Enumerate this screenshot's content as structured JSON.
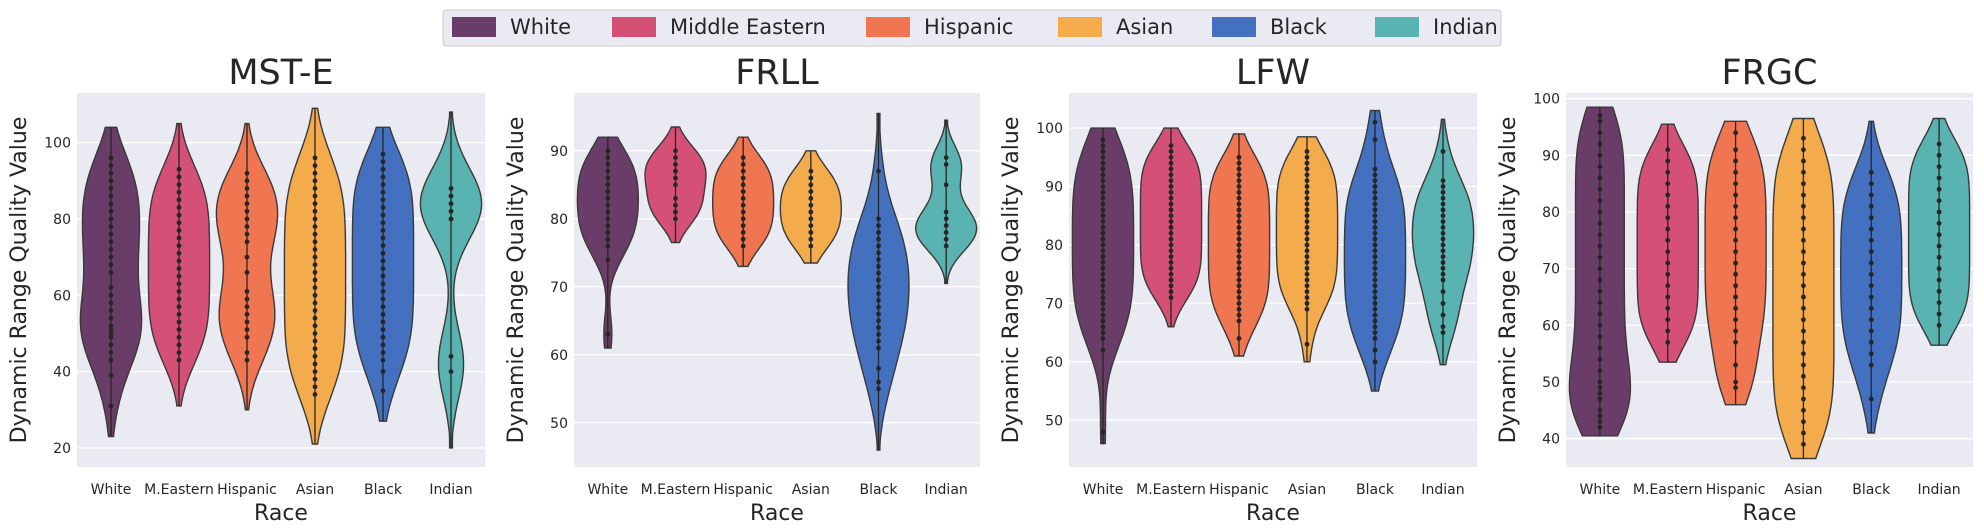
{
  "legend": {
    "entries": [
      {
        "label": "White",
        "color": "#6a3d68"
      },
      {
        "label": "Middle Eastern",
        "color": "#d45077"
      },
      {
        "label": "Hispanic",
        "color": "#f07551"
      },
      {
        "label": "Asian",
        "color": "#f4ab4b"
      },
      {
        "label": "Black",
        "color": "#4470c0"
      },
      {
        "label": "Indian",
        "color": "#59b3b0"
      }
    ]
  },
  "chart_data": [
    {
      "type": "violin",
      "title": "MST-E",
      "xlabel": "Race",
      "ylabel": "Dynamic Range Quality Value",
      "categories": [
        "White",
        "M.Eastern",
        "Hispanic",
        "Asian",
        "Black",
        "Indian"
      ],
      "ylim": [
        15,
        113
      ],
      "yticks": [
        20,
        40,
        60,
        80,
        100
      ],
      "grid": true,
      "series": [
        {
          "min": 23,
          "max": 104,
          "points": [
            31,
            39,
            43,
            45,
            47,
            49,
            50,
            51,
            52,
            54,
            56,
            58,
            60,
            62,
            66,
            68,
            70,
            72,
            74,
            76,
            78,
            80,
            82,
            84,
            86,
            88,
            90,
            92,
            94,
            96
          ]
        },
        {
          "min": 31,
          "max": 105,
          "points": [
            43,
            45,
            47,
            49,
            51,
            53,
            55,
            57,
            59,
            61,
            63,
            65,
            67,
            69,
            71,
            73,
            75,
            77,
            79,
            81,
            83,
            85,
            87,
            89,
            91,
            93
          ]
        },
        {
          "min": 30,
          "max": 105,
          "points": [
            43,
            45,
            49,
            51,
            53,
            55,
            57,
            59,
            61,
            66,
            70,
            74,
            76,
            78,
            80,
            82,
            84,
            86,
            88,
            90,
            92
          ]
        },
        {
          "min": 21,
          "max": 109,
          "points": [
            34,
            36,
            38,
            40,
            42,
            44,
            46,
            48,
            50,
            52,
            54,
            56,
            58,
            60,
            62,
            64,
            66,
            68,
            70,
            72,
            74,
            76,
            78,
            80,
            82,
            84,
            86,
            88,
            90,
            92,
            94,
            96
          ]
        },
        {
          "min": 27,
          "max": 104,
          "points": [
            35,
            40,
            43,
            45,
            47,
            49,
            51,
            53,
            55,
            57,
            59,
            61,
            63,
            65,
            67,
            69,
            71,
            73,
            75,
            77,
            79,
            81,
            83,
            85,
            87,
            89,
            91,
            93,
            95,
            97
          ]
        },
        {
          "min": 20,
          "max": 108,
          "points": [
            40,
            44,
            80,
            82,
            84,
            86,
            88
          ]
        }
      ]
    },
    {
      "type": "violin",
      "title": "FRLL",
      "xlabel": "Race",
      "ylabel": "Dynamic Range Quality Value",
      "categories": [
        "White",
        "M.Eastern",
        "Hispanic",
        "Asian",
        "Black",
        "Indian"
      ],
      "ylim": [
        43.5,
        98.5
      ],
      "yticks": [
        50,
        60,
        70,
        80,
        90
      ],
      "grid": true,
      "series": [
        {
          "min": 61,
          "max": 92,
          "points": [
            63,
            74,
            76,
            77,
            78,
            79,
            80,
            81,
            82,
            83,
            84,
            85,
            86,
            87,
            88,
            89,
            90
          ]
        },
        {
          "min": 76.5,
          "max": 93.5,
          "points": [
            80,
            81,
            82,
            83,
            85,
            86,
            87,
            88,
            89,
            90
          ]
        },
        {
          "min": 73,
          "max": 92,
          "points": [
            76,
            77,
            78,
            79,
            80,
            81,
            82,
            83,
            84,
            85,
            86,
            87,
            88,
            89
          ]
        },
        {
          "min": 73.5,
          "max": 90,
          "points": [
            76,
            77,
            78,
            79,
            80,
            81,
            82,
            83,
            84,
            85,
            86,
            87
          ]
        },
        {
          "min": 46,
          "max": 95.5,
          "points": [
            55,
            56,
            58,
            61,
            62,
            63,
            64,
            65,
            66,
            67,
            68,
            69,
            70,
            71,
            72,
            73,
            74,
            75,
            76,
            77,
            78,
            79,
            80,
            87
          ]
        },
        {
          "min": 70.5,
          "max": 94.5,
          "points": [
            76,
            77,
            78,
            79,
            80,
            81,
            85,
            88,
            89
          ]
        }
      ]
    },
    {
      "type": "violin",
      "title": "LFW",
      "xlabel": "Race",
      "ylabel": "Dynamic Range Quality Value",
      "categories": [
        "White",
        "M.Eastern",
        "Hispanic",
        "Asian",
        "Black",
        "Indian"
      ],
      "ylim": [
        42,
        106
      ],
      "yticks": [
        50,
        60,
        70,
        80,
        90,
        100
      ],
      "grid": true,
      "series": [
        {
          "min": 46,
          "max": 100,
          "points": [
            48,
            62,
            64,
            65,
            66,
            67,
            68,
            69,
            70,
            71,
            72,
            73,
            74,
            75,
            76,
            77,
            78,
            79,
            80,
            81,
            82,
            83,
            84,
            85,
            86,
            87,
            88,
            89,
            90,
            91,
            92,
            93,
            94,
            95,
            96,
            97,
            98
          ]
        },
        {
          "min": 66,
          "max": 100,
          "points": [
            71,
            72,
            73,
            74,
            75,
            76,
            77,
            78,
            79,
            80,
            81,
            82,
            83,
            84,
            85,
            86,
            87,
            88,
            89,
            90,
            91,
            92,
            93,
            94,
            95,
            96,
            97
          ]
        },
        {
          "min": 61,
          "max": 99,
          "points": [
            64,
            67,
            68,
            69,
            70,
            71,
            72,
            73,
            74,
            75,
            76,
            77,
            78,
            79,
            80,
            81,
            82,
            83,
            84,
            85,
            86,
            87,
            88,
            89,
            90,
            91,
            92,
            93,
            94,
            95
          ]
        },
        {
          "min": 60,
          "max": 98.5,
          "points": [
            63,
            69,
            70,
            71,
            72,
            73,
            74,
            75,
            76,
            77,
            78,
            79,
            80,
            81,
            82,
            83,
            84,
            85,
            86,
            87,
            88,
            89,
            90,
            91,
            92,
            93,
            94,
            95,
            96
          ]
        },
        {
          "min": 55,
          "max": 103,
          "points": [
            60,
            62,
            64,
            65,
            66,
            67,
            68,
            69,
            70,
            71,
            72,
            73,
            74,
            75,
            76,
            77,
            78,
            79,
            80,
            81,
            82,
            83,
            84,
            85,
            86,
            87,
            88,
            89,
            90,
            91,
            92,
            93,
            98,
            101
          ]
        },
        {
          "min": 59.5,
          "max": 101.5,
          "points": [
            65,
            66,
            68,
            70,
            72,
            74,
            75,
            76,
            77,
            78,
            79,
            80,
            81,
            82,
            83,
            84,
            85,
            86,
            87,
            88,
            89,
            90,
            91,
            96
          ]
        }
      ]
    },
    {
      "type": "violin",
      "title": "FRGC",
      "xlabel": "Race",
      "ylabel": "Dynamic Range Quality Value",
      "categories": [
        "White",
        "M.Eastern",
        "Hispanic",
        "Asian",
        "Black",
        "Indian"
      ],
      "ylim": [
        35,
        101
      ],
      "yticks": [
        40,
        50,
        60,
        70,
        80,
        90,
        100
      ],
      "grid": true,
      "series": [
        {
          "min": 40.5,
          "max": 98.5,
          "points": [
            42,
            43,
            44,
            45,
            47,
            48,
            49,
            50,
            52,
            54,
            56,
            58,
            60,
            62,
            64,
            66,
            68,
            70,
            72,
            74,
            76,
            78,
            80,
            82,
            84,
            86,
            88,
            90,
            92,
            94,
            96,
            97
          ]
        },
        {
          "min": 53.5,
          "max": 95.5,
          "points": [
            57,
            59,
            61,
            63,
            65,
            67,
            69,
            71,
            73,
            75,
            77,
            79,
            81,
            83,
            85,
            87,
            89,
            91
          ]
        },
        {
          "min": 46,
          "max": 96,
          "points": [
            49,
            50,
            53,
            57,
            59,
            61,
            63,
            65,
            67,
            69,
            71,
            73,
            75,
            77,
            79,
            81,
            83,
            85,
            87,
            89,
            91,
            94
          ]
        },
        {
          "min": 36.5,
          "max": 96.5,
          "points": [
            39,
            41,
            43,
            45,
            47,
            49,
            51,
            53,
            55,
            57,
            59,
            61,
            63,
            65,
            67,
            69,
            71,
            73,
            75,
            77,
            79,
            81,
            83,
            85,
            87,
            89,
            91,
            93
          ]
        },
        {
          "min": 41,
          "max": 96,
          "points": [
            47,
            53,
            55,
            57,
            59,
            61,
            63,
            65,
            67,
            69,
            71,
            73,
            75,
            77,
            79,
            81,
            83,
            85,
            87
          ]
        },
        {
          "min": 56.5,
          "max": 96.5,
          "points": [
            60,
            62,
            64,
            66,
            68,
            70,
            72,
            74,
            76,
            78,
            80,
            82,
            84,
            86,
            88,
            90,
            92
          ]
        }
      ]
    }
  ]
}
